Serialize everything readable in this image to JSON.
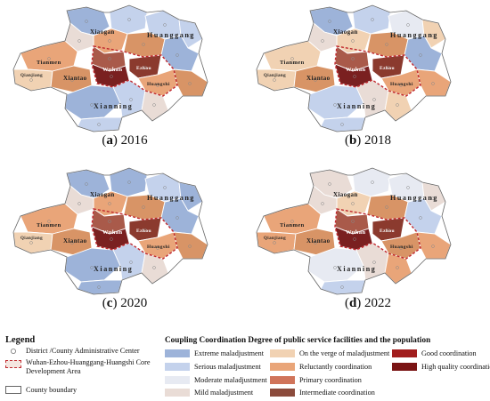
{
  "panels": [
    {
      "id": "a",
      "year": "2016",
      "caption_letter": "a",
      "caption_year": " 2016",
      "fills": [
        "#9db3d9",
        "#c4d2ec",
        "#e9a579",
        "#c4d2ec",
        "#c4d2ec",
        "#e9dcd6",
        "#d89466",
        "#9db3d9",
        "#e9a579",
        "#f1d2b3",
        "#d89466",
        "#a95a4a",
        "#7a2020",
        "#8b3a2e",
        "#e9a579",
        "#9db3d9",
        "#c4d2ec",
        "#e9dcd6",
        "#c4d2ec",
        "#d89466"
      ]
    },
    {
      "id": "b",
      "year": "2018",
      "caption_letter": "b",
      "caption_year": " 2018",
      "fills": [
        "#9db3d9",
        "#c4d2ec",
        "#f1d2b3",
        "#e7eaf2",
        "#f1d2b3",
        "#e9dcd6",
        "#d89466",
        "#9db3d9",
        "#f1d2b3",
        "#f1d2b3",
        "#d89466",
        "#a95a4a",
        "#7a2020",
        "#8b3a2e",
        "#e9a579",
        "#c4d2ec",
        "#e9dcd6",
        "#f1d2b3",
        "#c4d2ec",
        "#e9a579"
      ]
    },
    {
      "id": "c",
      "year": "2020",
      "caption_letter": "c",
      "caption_year": " 2020",
      "fills": [
        "#9db3d9",
        "#9db3d9",
        "#e9a579",
        "#c4d2ec",
        "#9db3d9",
        "#e9dcd6",
        "#d89466",
        "#9db3d9",
        "#e9a579",
        "#f1d2b3",
        "#d89466",
        "#a95a4a",
        "#7a2020",
        "#8b3a2e",
        "#e9a579",
        "#9db3d9",
        "#c4d2ec",
        "#e9dcd6",
        "#9db3d9",
        "#d89466"
      ]
    },
    {
      "id": "d",
      "year": "2022",
      "caption_letter": "d",
      "caption_year": " 2022",
      "fills": [
        "#e9dcd6",
        "#e7eaf2",
        "#f1d2b3",
        "#e7eaf2",
        "#e9dcd6",
        "#e9dcd6",
        "#d89466",
        "#c4d2ec",
        "#e9a579",
        "#e9a579",
        "#d89466",
        "#a95a4a",
        "#7a2020",
        "#8b3a2e",
        "#d89466",
        "#e7eaf2",
        "#e9dcd6",
        "#e9a579",
        "#c4d2ec",
        "#e9a579"
      ]
    }
  ],
  "map_labels": {
    "xiaogan": "Xiaogan",
    "huanggang": "Huanggang",
    "tianmen": "Tianmen",
    "qianjiang": "Qianjiang",
    "xiantao": "Xiantao",
    "wuhan": "Wuhan",
    "ezhou": "Ezhou",
    "huangshi": "Huangshi",
    "xianning": "Xianning"
  },
  "legend": {
    "title": "Legend",
    "admin_center": "District /County Administrative Center",
    "core_area": "Wuhan-Ezhou-Huanggang-Huangshi Core Development Area",
    "county_boundary": "County boundary"
  },
  "coupling": {
    "title": "Coupling Coordination Degree of public service facilities and the population",
    "classes": [
      {
        "label": "Extreme maladjustment",
        "color": "#9db3d9"
      },
      {
        "label": "Serious maladjustment",
        "color": "#c4d2ec"
      },
      {
        "label": "Moderate maladjustment",
        "color": "#e7eaf2"
      },
      {
        "label": "Mild maladjustment",
        "color": "#e9dcd6"
      },
      {
        "label": "On the verge of maladjustment",
        "color": "#f1d2b3"
      },
      {
        "label": "Reluctantly coordination",
        "color": "#e9a579"
      },
      {
        "label": "Primary coordination",
        "color": "#d0745a"
      },
      {
        "label": "Intermediate coordination",
        "color": "#8b4b3c"
      },
      {
        "label": "Good coordination",
        "color": "#a11d1d"
      },
      {
        "label": "High quality coordination",
        "color": "#7a1414"
      }
    ]
  },
  "colors": {
    "core_boundary": "#c0282e",
    "county_line": "#ffffff",
    "outline": "#666666"
  }
}
